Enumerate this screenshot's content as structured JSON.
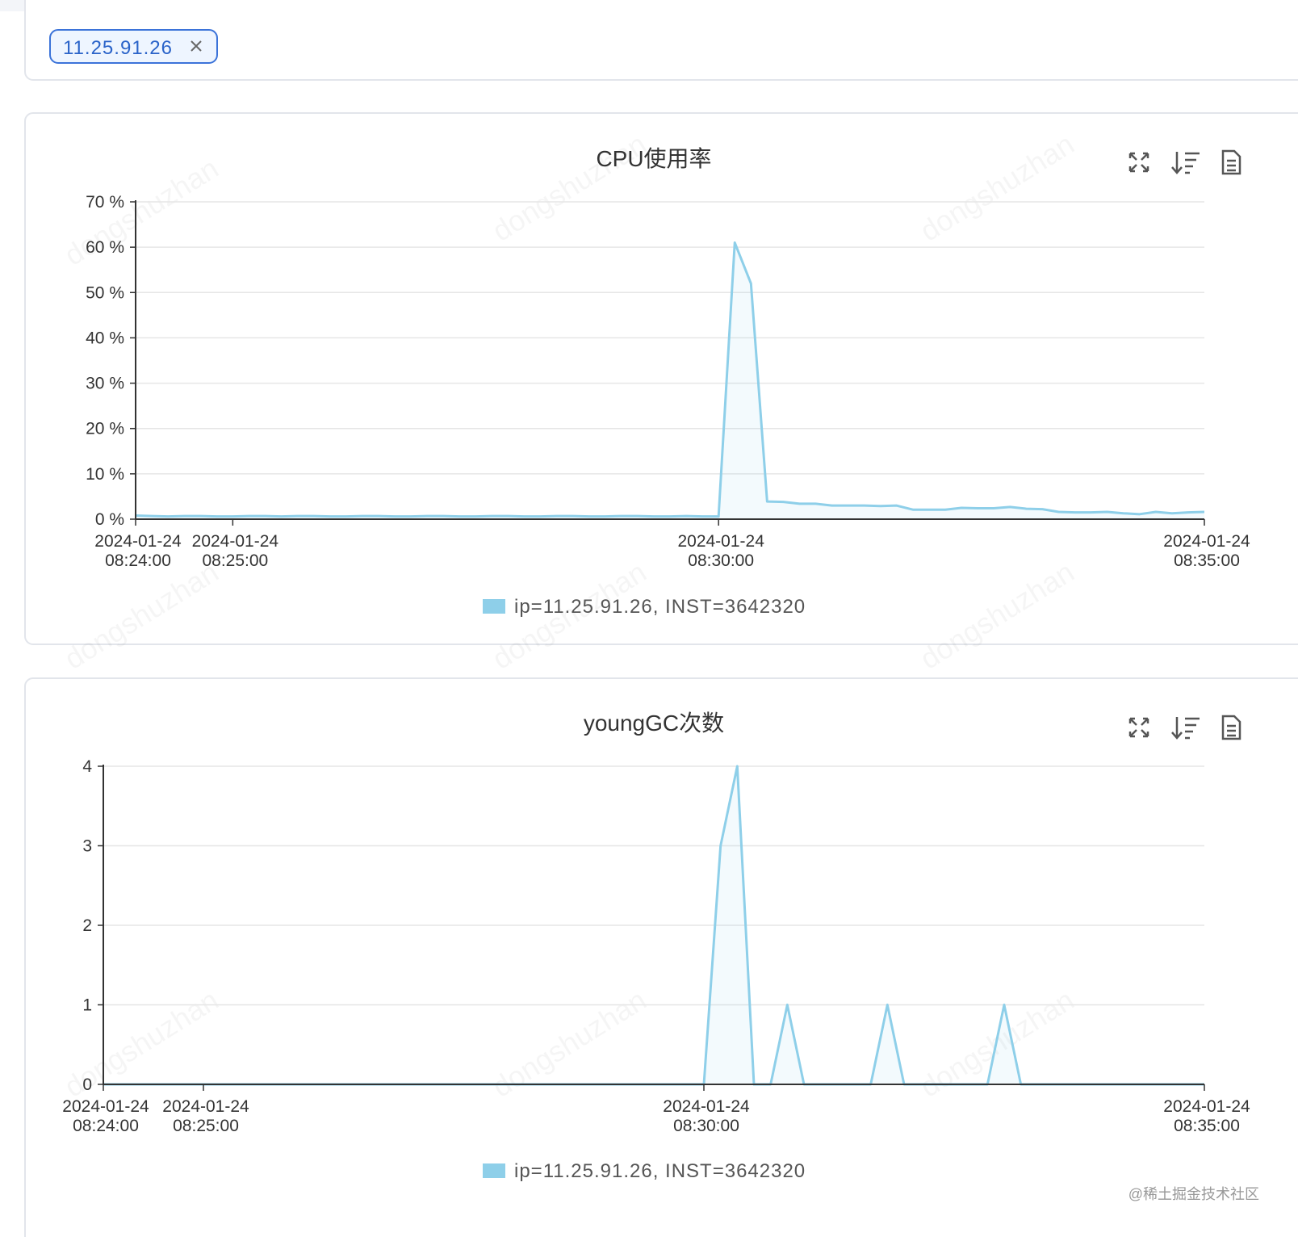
{
  "filter": {
    "tag": "11.25.91.26"
  },
  "watermark": "dongshuzhan",
  "footer": "@稀土掘金技术社区",
  "chart_data": [
    {
      "type": "line",
      "title": "CPU使用率",
      "x": [
        "2024-01-24 08:24:00",
        "2024-01-24 08:24:10",
        "2024-01-24 08:24:20",
        "2024-01-24 08:24:30",
        "2024-01-24 08:24:40",
        "2024-01-24 08:24:50",
        "2024-01-24 08:25:00",
        "2024-01-24 08:25:10",
        "2024-01-24 08:25:20",
        "2024-01-24 08:25:30",
        "2024-01-24 08:25:40",
        "2024-01-24 08:25:50",
        "2024-01-24 08:26:00",
        "2024-01-24 08:26:10",
        "2024-01-24 08:26:20",
        "2024-01-24 08:26:30",
        "2024-01-24 08:26:40",
        "2024-01-24 08:26:50",
        "2024-01-24 08:27:00",
        "2024-01-24 08:27:10",
        "2024-01-24 08:27:20",
        "2024-01-24 08:27:30",
        "2024-01-24 08:27:40",
        "2024-01-24 08:27:50",
        "2024-01-24 08:28:00",
        "2024-01-24 08:28:10",
        "2024-01-24 08:28:20",
        "2024-01-24 08:28:30",
        "2024-01-24 08:28:40",
        "2024-01-24 08:28:50",
        "2024-01-24 08:29:00",
        "2024-01-24 08:29:10",
        "2024-01-24 08:29:20",
        "2024-01-24 08:29:30",
        "2024-01-24 08:29:40",
        "2024-01-24 08:29:50",
        "2024-01-24 08:30:00",
        "2024-01-24 08:30:10",
        "2024-01-24 08:30:20",
        "2024-01-24 08:30:30",
        "2024-01-24 08:30:40",
        "2024-01-24 08:30:50",
        "2024-01-24 08:31:00",
        "2024-01-24 08:31:10",
        "2024-01-24 08:31:20",
        "2024-01-24 08:31:30",
        "2024-01-24 08:31:40",
        "2024-01-24 08:31:50",
        "2024-01-24 08:32:00",
        "2024-01-24 08:32:10",
        "2024-01-24 08:32:20",
        "2024-01-24 08:32:30",
        "2024-01-24 08:32:40",
        "2024-01-24 08:32:50",
        "2024-01-24 08:33:00",
        "2024-01-24 08:33:10",
        "2024-01-24 08:33:20",
        "2024-01-24 08:33:30",
        "2024-01-24 08:33:40",
        "2024-01-24 08:33:50",
        "2024-01-24 08:34:00",
        "2024-01-24 08:34:10",
        "2024-01-24 08:34:20",
        "2024-01-24 08:34:30",
        "2024-01-24 08:34:40",
        "2024-01-24 08:34:50",
        "2024-01-24 08:35:00"
      ],
      "series": [
        {
          "name": "ip=11.25.91.26, INST=3642320",
          "color": "#8ecfe9",
          "values": [
            0.8,
            0.7,
            0.6,
            0.7,
            0.7,
            0.6,
            0.6,
            0.7,
            0.7,
            0.6,
            0.7,
            0.7,
            0.6,
            0.6,
            0.7,
            0.7,
            0.6,
            0.6,
            0.7,
            0.7,
            0.6,
            0.6,
            0.7,
            0.7,
            0.6,
            0.6,
            0.7,
            0.7,
            0.6,
            0.6,
            0.7,
            0.7,
            0.6,
            0.6,
            0.7,
            0.6,
            0.6,
            61,
            52,
            3.9,
            3.8,
            3.4,
            3.4,
            3.0,
            3.0,
            3.0,
            2.9,
            3.0,
            2.1,
            2.1,
            2.1,
            2.5,
            2.4,
            2.4,
            2.7,
            2.3,
            2.2,
            1.6,
            1.5,
            1.5,
            1.6,
            1.3,
            1.1,
            1.6,
            1.3,
            1.5,
            1.6
          ]
        }
      ],
      "xlim": [
        "2024-01-24 08:24:00",
        "2024-01-24 08:35:00"
      ],
      "xticks": [
        "2024-01-24 08:24:00",
        "2024-01-24 08:25:00",
        "2024-01-24 08:30:00",
        "2024-01-24 08:35:00"
      ],
      "ylim": [
        0,
        70
      ],
      "yticks": [
        {
          "value": 0,
          "label": "0 %"
        },
        {
          "value": 10,
          "label": "10 %"
        },
        {
          "value": 20,
          "label": "20 %"
        },
        {
          "value": 30,
          "label": "30 %"
        },
        {
          "value": 40,
          "label": "40 %"
        },
        {
          "value": 50,
          "label": "50 %"
        },
        {
          "value": 60,
          "label": "60 %"
        },
        {
          "value": 70,
          "label": "70 %"
        }
      ],
      "grid": true,
      "legend": "bottom"
    },
    {
      "type": "line",
      "title": "youngGC次数",
      "x": [
        "2024-01-24 08:24:00",
        "2024-01-24 08:24:10",
        "2024-01-24 08:24:20",
        "2024-01-24 08:24:30",
        "2024-01-24 08:24:40",
        "2024-01-24 08:24:50",
        "2024-01-24 08:25:00",
        "2024-01-24 08:25:10",
        "2024-01-24 08:25:20",
        "2024-01-24 08:25:30",
        "2024-01-24 08:25:40",
        "2024-01-24 08:25:50",
        "2024-01-24 08:26:00",
        "2024-01-24 08:26:10",
        "2024-01-24 08:26:20",
        "2024-01-24 08:26:30",
        "2024-01-24 08:26:40",
        "2024-01-24 08:26:50",
        "2024-01-24 08:27:00",
        "2024-01-24 08:27:10",
        "2024-01-24 08:27:20",
        "2024-01-24 08:27:30",
        "2024-01-24 08:27:40",
        "2024-01-24 08:27:50",
        "2024-01-24 08:28:00",
        "2024-01-24 08:28:10",
        "2024-01-24 08:28:20",
        "2024-01-24 08:28:30",
        "2024-01-24 08:28:40",
        "2024-01-24 08:28:50",
        "2024-01-24 08:29:00",
        "2024-01-24 08:29:10",
        "2024-01-24 08:29:20",
        "2024-01-24 08:29:30",
        "2024-01-24 08:29:40",
        "2024-01-24 08:29:50",
        "2024-01-24 08:30:00",
        "2024-01-24 08:30:10",
        "2024-01-24 08:30:20",
        "2024-01-24 08:30:30",
        "2024-01-24 08:30:40",
        "2024-01-24 08:30:50",
        "2024-01-24 08:31:00",
        "2024-01-24 08:31:10",
        "2024-01-24 08:31:20",
        "2024-01-24 08:31:30",
        "2024-01-24 08:31:40",
        "2024-01-24 08:31:50",
        "2024-01-24 08:32:00",
        "2024-01-24 08:32:10",
        "2024-01-24 08:32:20",
        "2024-01-24 08:32:30",
        "2024-01-24 08:32:40",
        "2024-01-24 08:32:50",
        "2024-01-24 08:33:00",
        "2024-01-24 08:33:10",
        "2024-01-24 08:33:20",
        "2024-01-24 08:33:30",
        "2024-01-24 08:33:40",
        "2024-01-24 08:33:50",
        "2024-01-24 08:34:00",
        "2024-01-24 08:34:10",
        "2024-01-24 08:34:20",
        "2024-01-24 08:34:30",
        "2024-01-24 08:34:40",
        "2024-01-24 08:34:50",
        "2024-01-24 08:35:00"
      ],
      "series": [
        {
          "name": "ip=11.25.91.26, INST=3642320",
          "color": "#8ecfe9",
          "values": [
            0,
            0,
            0,
            0,
            0,
            0,
            0,
            0,
            0,
            0,
            0,
            0,
            0,
            0,
            0,
            0,
            0,
            0,
            0,
            0,
            0,
            0,
            0,
            0,
            0,
            0,
            0,
            0,
            0,
            0,
            0,
            0,
            0,
            0,
            0,
            0,
            0,
            3,
            4,
            0,
            0,
            1,
            0,
            0,
            0,
            0,
            0,
            1,
            0,
            0,
            0,
            0,
            0,
            0,
            1,
            0,
            0,
            0,
            0,
            0,
            0,
            0,
            0,
            0,
            0,
            0,
            0
          ]
        }
      ],
      "xlim": [
        "2024-01-24 08:24:00",
        "2024-01-24 08:35:00"
      ],
      "xticks": [
        "2024-01-24 08:24:00",
        "2024-01-24 08:25:00",
        "2024-01-24 08:30:00",
        "2024-01-24 08:35:00"
      ],
      "ylim": [
        0,
        4
      ],
      "yticks": [
        0,
        1,
        2,
        3,
        4
      ],
      "grid": true,
      "legend": "bottom"
    }
  ]
}
